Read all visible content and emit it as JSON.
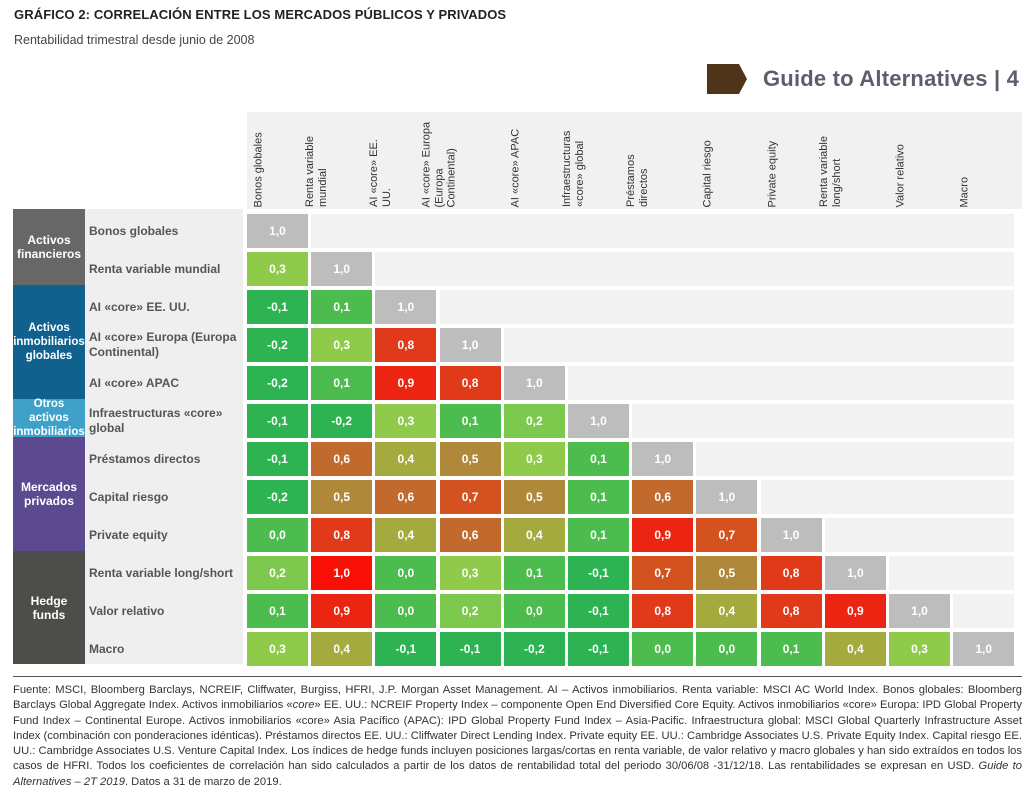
{
  "header": {
    "title": "GRÁFICO 2: CORRELACIÓN ENTRE LOS MERCADOS PÚBLICOS Y PRIVADOS",
    "subtitle": "Rentabilidad trimestral desde junio de 2008",
    "brand_text": "Guide to Alternatives | 4",
    "brand_color": "#4e3418"
  },
  "chart_data": {
    "type": "heatmap",
    "title": "GRÁFICO 2: CORRELACIÓN ENTRE LOS MERCADOS PÚBLICOS Y PRIVADOS",
    "subtitle": "Rentabilidad trimestral desde junio de 2008",
    "columns": [
      "Bonos globales",
      "Renta variable mundial",
      "AI «core» EE. UU.",
      "AI «core» Europa (Europa Continental)",
      "AI «core» APAC",
      "Infraestructuras «core» global",
      "Préstamos directos",
      "Capital riesgo",
      "Private equity",
      "Renta variable long/short",
      "Valor relativo",
      "Macro"
    ],
    "rows": [
      "Bonos globales",
      "Renta variable mundial",
      "AI «core» EE. UU.",
      "AI «core» Europa (Europa Continental)",
      "AI «core» APAC",
      "Infraestructuras «core» global",
      "Préstamos directos",
      "Capital riesgo",
      "Private equity",
      "Renta variable long/short",
      "Valor relativo",
      "Macro"
    ],
    "groups": [
      {
        "name": "Activos financieros",
        "rows": [
          0,
          1
        ],
        "color": "#676767"
      },
      {
        "name": "Activos inmobiliarios globales",
        "rows": [
          2,
          3,
          4
        ],
        "color": "#10618e"
      },
      {
        "name": "Otros activos inmobiliarios",
        "rows": [
          5,
          5
        ],
        "color": "#3fa1c9"
      },
      {
        "name": "Mercados privados",
        "rows": [
          6,
          8
        ],
        "color": "#5b4a8f"
      },
      {
        "name": "Hedge funds",
        "rows": [
          9,
          11
        ],
        "color": "#4d4d49"
      }
    ],
    "values": [
      [
        1.0
      ],
      [
        0.3,
        1.0
      ],
      [
        -0.1,
        0.1,
        1.0
      ],
      [
        -0.2,
        0.3,
        0.8,
        1.0
      ],
      [
        -0.2,
        0.1,
        0.9,
        0.8,
        1.0
      ],
      [
        -0.1,
        -0.2,
        0.3,
        0.1,
        0.2,
        1.0
      ],
      [
        -0.1,
        0.6,
        0.4,
        0.5,
        0.3,
        0.1,
        1.0
      ],
      [
        -0.2,
        0.5,
        0.6,
        0.7,
        0.5,
        0.1,
        0.6,
        1.0
      ],
      [
        0.0,
        0.8,
        0.4,
        0.6,
        0.4,
        0.1,
        0.9,
        0.7,
        1.0
      ],
      [
        0.2,
        1.0,
        0.0,
        0.3,
        0.1,
        -0.1,
        0.7,
        0.5,
        0.8,
        1.0
      ],
      [
        0.1,
        0.9,
        0.0,
        0.2,
        0.0,
        -0.1,
        0.8,
        0.4,
        0.8,
        0.9,
        1.0
      ],
      [
        0.3,
        0.4,
        -0.1,
        -0.1,
        -0.2,
        -0.1,
        0.0,
        0.0,
        0.1,
        0.4,
        0.3,
        1.0
      ]
    ],
    "display_values": [
      [
        "1,0"
      ],
      [
        "0,3",
        "1,0"
      ],
      [
        "-0,1",
        "0,1",
        "1,0"
      ],
      [
        "-0,2",
        "0,3",
        "0,8",
        "1,0"
      ],
      [
        "-0,2",
        "0,1",
        "0,9",
        "0,8",
        "1,0"
      ],
      [
        "-0,1",
        "-0,2",
        "0,3",
        "0,1",
        "0,2",
        "1,0"
      ],
      [
        "-0,1",
        "0,6",
        "0,4",
        "0,5",
        "0,3",
        "0,1",
        "1,0"
      ],
      [
        "-0,2",
        "0,5",
        "0,6",
        "0,7",
        "0,5",
        "0,1",
        "0,6",
        "1,0"
      ],
      [
        "0,0",
        "0,8",
        "0,4",
        "0,6",
        "0,4",
        "0,1",
        "0,9",
        "0,7",
        "1,0"
      ],
      [
        "0,2",
        "1,0",
        "0,0",
        "0,3",
        "0,1",
        "-0,1",
        "0,7",
        "0,5",
        "0,8",
        "1,0"
      ],
      [
        "0,1",
        "0,9",
        "0,0",
        "0,2",
        "0,0",
        "-0,1",
        "0,8",
        "0,4",
        "0,8",
        "0,9",
        "1,0"
      ],
      [
        "0,3",
        "0,4",
        "-0,1",
        "-0,1",
        "-0,2",
        "-0,1",
        "0,0",
        "0,0",
        "0,1",
        "0,4",
        "0,3",
        "1,0"
      ]
    ],
    "color_scale": {
      "diagonal": "#bdbdbd",
      "stops": [
        {
          "value": -0.2,
          "color": "#2db352"
        },
        {
          "value": 0.0,
          "color": "#4cbc4f"
        },
        {
          "value": 0.2,
          "color": "#7cc94e"
        },
        {
          "value": 0.3,
          "color": "#8fca4a"
        },
        {
          "value": 0.4,
          "color": "#a5aa3e"
        },
        {
          "value": 0.5,
          "color": "#b0883a"
        },
        {
          "value": 0.6,
          "color": "#c26a2e"
        },
        {
          "value": 0.7,
          "color": "#d4521f"
        },
        {
          "value": 0.8,
          "color": "#e03a1a"
        },
        {
          "value": 0.9,
          "color": "#ec2412"
        },
        {
          "value": 1.0,
          "color": "#f90f06"
        }
      ]
    }
  },
  "footnote": {
    "text_before_italic": "Fuente: MSCI, Bloomberg Barclays, NCREIF, Cliffwater, Burgiss, HFRI, J.P. Morgan Asset Management. AI – Activos inmobiliarios. Renta variable: MSCI AC World Index. Bonos globales: Bloomberg Barclays Global Aggregate Index. Activos inmobiliarios «",
    "italic_core": "core",
    "text_after_core": "» EE. UU.: NCREIF Property Index – componente Open End Diversified Core Equity. Activos inmobiliarios «core» Europa: IPD Global Property Fund Index – Continental Europe. Activos inmobiliarios «core» Asia Pacífico (APAC): IPD Global Property Fund Index – Asia-Pacific. Infraestructura global: MSCI Global Quarterly Infrastructure Asset Index (combinación con ponderaciones idénticas). Préstamos directos EE. UU.: Cliffwater Direct Lending Index. Private equity EE. UU.: Cambridge Associates U.S. Private Equity Index. Capital riesgo EE. UU.: Cambridge Associates U.S. Venture Capital Index. Los índices de hedge funds incluyen posiciones largas/cortas en renta variable, de valor relativo y macro globales y han sido extraídos en todos los casos de HFRI. Todos los coeficientes de correlación han sido calculados a partir de los datos de rentabilidad total del periodo 30/06/08 -31/12/18. Las rentabilidades se expresan en USD.  ",
    "italic_guide": "Guide to Alternatives – 2T 2019",
    "text_end": ". Datos a 31 de marzo de 2019."
  }
}
